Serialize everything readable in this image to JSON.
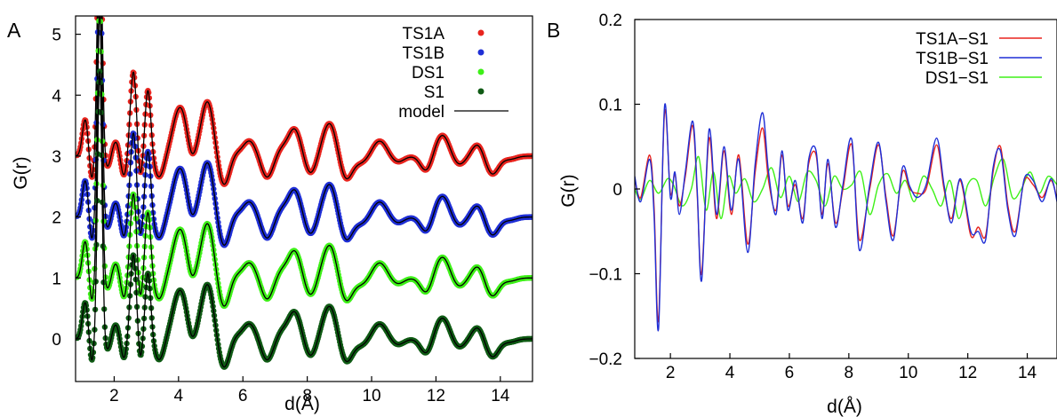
{
  "chart_data": [
    {
      "panel": "A",
      "type": "scatter",
      "xlabel": "d(Å)",
      "ylabel": "G(r)",
      "xlim": [
        0.8,
        15
      ],
      "ylim": [
        -0.7,
        5.3
      ],
      "xticks": [
        "2",
        "4",
        "6",
        "8",
        "10",
        "12",
        "14"
      ],
      "yticks": [
        "0",
        "1",
        "2",
        "3",
        "4",
        "5"
      ],
      "legend_position": "top-right",
      "model_label": "model",
      "model_color": "#000000",
      "peaks": [
        [
          1.1,
          0.6,
          0.09
        ],
        [
          1.3,
          -0.4,
          0.07
        ],
        [
          1.55,
          4.4,
          0.07
        ],
        [
          1.8,
          -0.2,
          0.1
        ],
        [
          2.05,
          0.25,
          0.12
        ],
        [
          2.3,
          -0.35,
          0.1
        ],
        [
          2.6,
          1.4,
          0.1
        ],
        [
          2.8,
          -0.45,
          0.08
        ],
        [
          3.05,
          1.1,
          0.09
        ],
        [
          3.4,
          -0.35,
          0.15
        ],
        [
          4.05,
          0.8,
          0.22
        ],
        [
          4.4,
          -0.2,
          0.12
        ],
        [
          4.9,
          0.9,
          0.2
        ],
        [
          5.4,
          -0.5,
          0.18
        ],
        [
          5.75,
          0.05,
          0.15
        ],
        [
          6.2,
          0.25,
          0.2
        ],
        [
          6.75,
          -0.35,
          0.18
        ],
        [
          7.2,
          0.1,
          0.15
        ],
        [
          7.6,
          0.45,
          0.2
        ],
        [
          8.1,
          -0.3,
          0.18
        ],
        [
          8.7,
          0.55,
          0.22
        ],
        [
          9.2,
          -0.4,
          0.2
        ],
        [
          9.7,
          -0.1,
          0.2
        ],
        [
          10.25,
          0.25,
          0.22
        ],
        [
          10.8,
          -0.1,
          0.2
        ],
        [
          11.3,
          0.0,
          0.2
        ],
        [
          11.7,
          -0.25,
          0.18
        ],
        [
          12.2,
          0.35,
          0.22
        ],
        [
          12.7,
          -0.15,
          0.2
        ],
        [
          13.3,
          0.2,
          0.18
        ],
        [
          13.75,
          -0.3,
          0.2
        ],
        [
          14.3,
          -0.05,
          0.2
        ]
      ],
      "series": [
        {
          "name": "TS1A",
          "offset": 3,
          "color": "#e8241e"
        },
        {
          "name": "TS1B",
          "offset": 2,
          "color": "#1f2fd6"
        },
        {
          "name": "DS1",
          "offset": 1,
          "color": "#3ef018"
        },
        {
          "name": "S1",
          "offset": 0,
          "color": "#0f5a14"
        }
      ]
    },
    {
      "panel": "B",
      "type": "line",
      "xlabel": "d(Å)",
      "ylabel": "G(r)",
      "xlim": [
        0.8,
        15
      ],
      "ylim": [
        -0.2,
        0.2
      ],
      "xticks": [
        "2",
        "4",
        "6",
        "8",
        "10",
        "12",
        "14"
      ],
      "yticks": [
        "−0.2",
        "−0.1",
        "0",
        "0.1",
        "0.2"
      ],
      "legend_position": "top-right",
      "series": [
        {
          "name": "TS1A−S1",
          "color": "#e8241e",
          "x": [
            0.8,
            1.0,
            1.3,
            1.45,
            1.6,
            1.8,
            2.0,
            2.15,
            2.3,
            2.5,
            2.75,
            2.9,
            3.05,
            3.3,
            3.55,
            3.8,
            4.05,
            4.3,
            4.6,
            4.85,
            5.1,
            5.3,
            5.55,
            5.75,
            5.95,
            6.2,
            6.45,
            6.65,
            6.9,
            7.1,
            7.3,
            7.55,
            7.8,
            8.1,
            8.35,
            8.7,
            9.0,
            9.25,
            9.5,
            9.8,
            10.05,
            10.3,
            10.6,
            10.95,
            11.2,
            11.45,
            11.75,
            12.1,
            12.35,
            12.6,
            12.85,
            13.1,
            13.35,
            13.6,
            13.9,
            14.2,
            14.5,
            14.8,
            15.0
          ],
          "y": [
            0.012,
            -0.01,
            0.04,
            -0.02,
            -0.155,
            0.09,
            -0.005,
            0.018,
            -0.02,
            0.015,
            0.075,
            -0.005,
            -0.1,
            0.06,
            -0.035,
            0.045,
            -0.03,
            0.04,
            -0.065,
            0.02,
            0.072,
            0.01,
            -0.025,
            0.04,
            -0.02,
            0.005,
            -0.035,
            0.03,
            0.04,
            -0.03,
            0.03,
            -0.04,
            0.0,
            0.052,
            -0.06,
            0.0,
            0.052,
            -0.01,
            -0.055,
            0.02,
            0.0,
            -0.005,
            0.0,
            0.052,
            0.0,
            -0.035,
            0.01,
            -0.055,
            -0.045,
            -0.055,
            0.02,
            0.05,
            -0.02,
            -0.05,
            0.01,
            0.005,
            -0.01,
            0.01,
            -0.012
          ]
        },
        {
          "name": "TS1B−S1",
          "color": "#1f2fd6",
          "x": [
            0.8,
            1.0,
            1.3,
            1.45,
            1.6,
            1.8,
            2.0,
            2.15,
            2.3,
            2.5,
            2.75,
            2.9,
            3.05,
            3.3,
            3.55,
            3.8,
            4.05,
            4.3,
            4.6,
            4.85,
            5.1,
            5.3,
            5.55,
            5.75,
            5.95,
            6.2,
            6.45,
            6.65,
            6.9,
            7.1,
            7.3,
            7.55,
            7.8,
            8.1,
            8.35,
            8.7,
            9.0,
            9.25,
            9.5,
            9.8,
            10.05,
            10.3,
            10.6,
            10.95,
            11.2,
            11.45,
            11.75,
            12.1,
            12.35,
            12.6,
            12.85,
            13.1,
            13.35,
            13.6,
            13.9,
            14.2,
            14.5,
            14.8,
            15.0
          ],
          "y": [
            0.015,
            -0.015,
            0.035,
            -0.03,
            -0.165,
            0.097,
            -0.01,
            0.02,
            -0.03,
            0.02,
            0.08,
            0.0,
            -0.108,
            0.07,
            -0.03,
            0.05,
            -0.025,
            0.035,
            -0.075,
            0.03,
            0.09,
            0.02,
            -0.03,
            0.045,
            -0.025,
            0.01,
            -0.04,
            0.035,
            0.045,
            -0.035,
            0.035,
            -0.045,
            0.005,
            0.058,
            -0.072,
            0.005,
            0.055,
            -0.015,
            -0.06,
            0.025,
            0.003,
            -0.01,
            0.005,
            0.06,
            0.005,
            -0.04,
            0.012,
            -0.05,
            -0.05,
            -0.06,
            0.025,
            0.045,
            -0.025,
            -0.055,
            0.012,
            0.01,
            -0.015,
            0.012,
            -0.015
          ]
        },
        {
          "name": "DS1−S1",
          "color": "#3ef018",
          "x": [
            0.8,
            1.0,
            1.3,
            1.6,
            1.9,
            2.1,
            2.4,
            2.7,
            2.95,
            3.2,
            3.45,
            3.7,
            3.95,
            4.2,
            4.5,
            4.8,
            5.1,
            5.4,
            5.7,
            6.0,
            6.3,
            6.6,
            6.9,
            7.2,
            7.5,
            7.8,
            8.1,
            8.4,
            8.7,
            9.0,
            9.3,
            9.6,
            9.9,
            10.2,
            10.5,
            10.8,
            11.1,
            11.4,
            11.7,
            12.0,
            12.3,
            12.6,
            12.9,
            13.2,
            13.5,
            13.8,
            14.1,
            14.4,
            14.7,
            15.0
          ],
          "y": [
            0.0,
            -0.012,
            0.01,
            -0.005,
            0.012,
            0.005,
            -0.02,
            0.0,
            0.038,
            -0.025,
            0.02,
            -0.035,
            0.015,
            -0.005,
            0.012,
            -0.015,
            0.0,
            0.025,
            -0.01,
            0.015,
            -0.015,
            0.02,
            0.01,
            -0.02,
            0.015,
            0.0,
            0.005,
            0.02,
            -0.03,
            0.005,
            0.018,
            -0.005,
            0.01,
            -0.015,
            0.015,
            0.0,
            -0.02,
            0.01,
            -0.035,
            0.005,
            0.01,
            -0.02,
            0.015,
            0.035,
            -0.01,
            0.0,
            0.02,
            -0.005,
            0.015,
            0.005
          ]
        }
      ]
    }
  ]
}
